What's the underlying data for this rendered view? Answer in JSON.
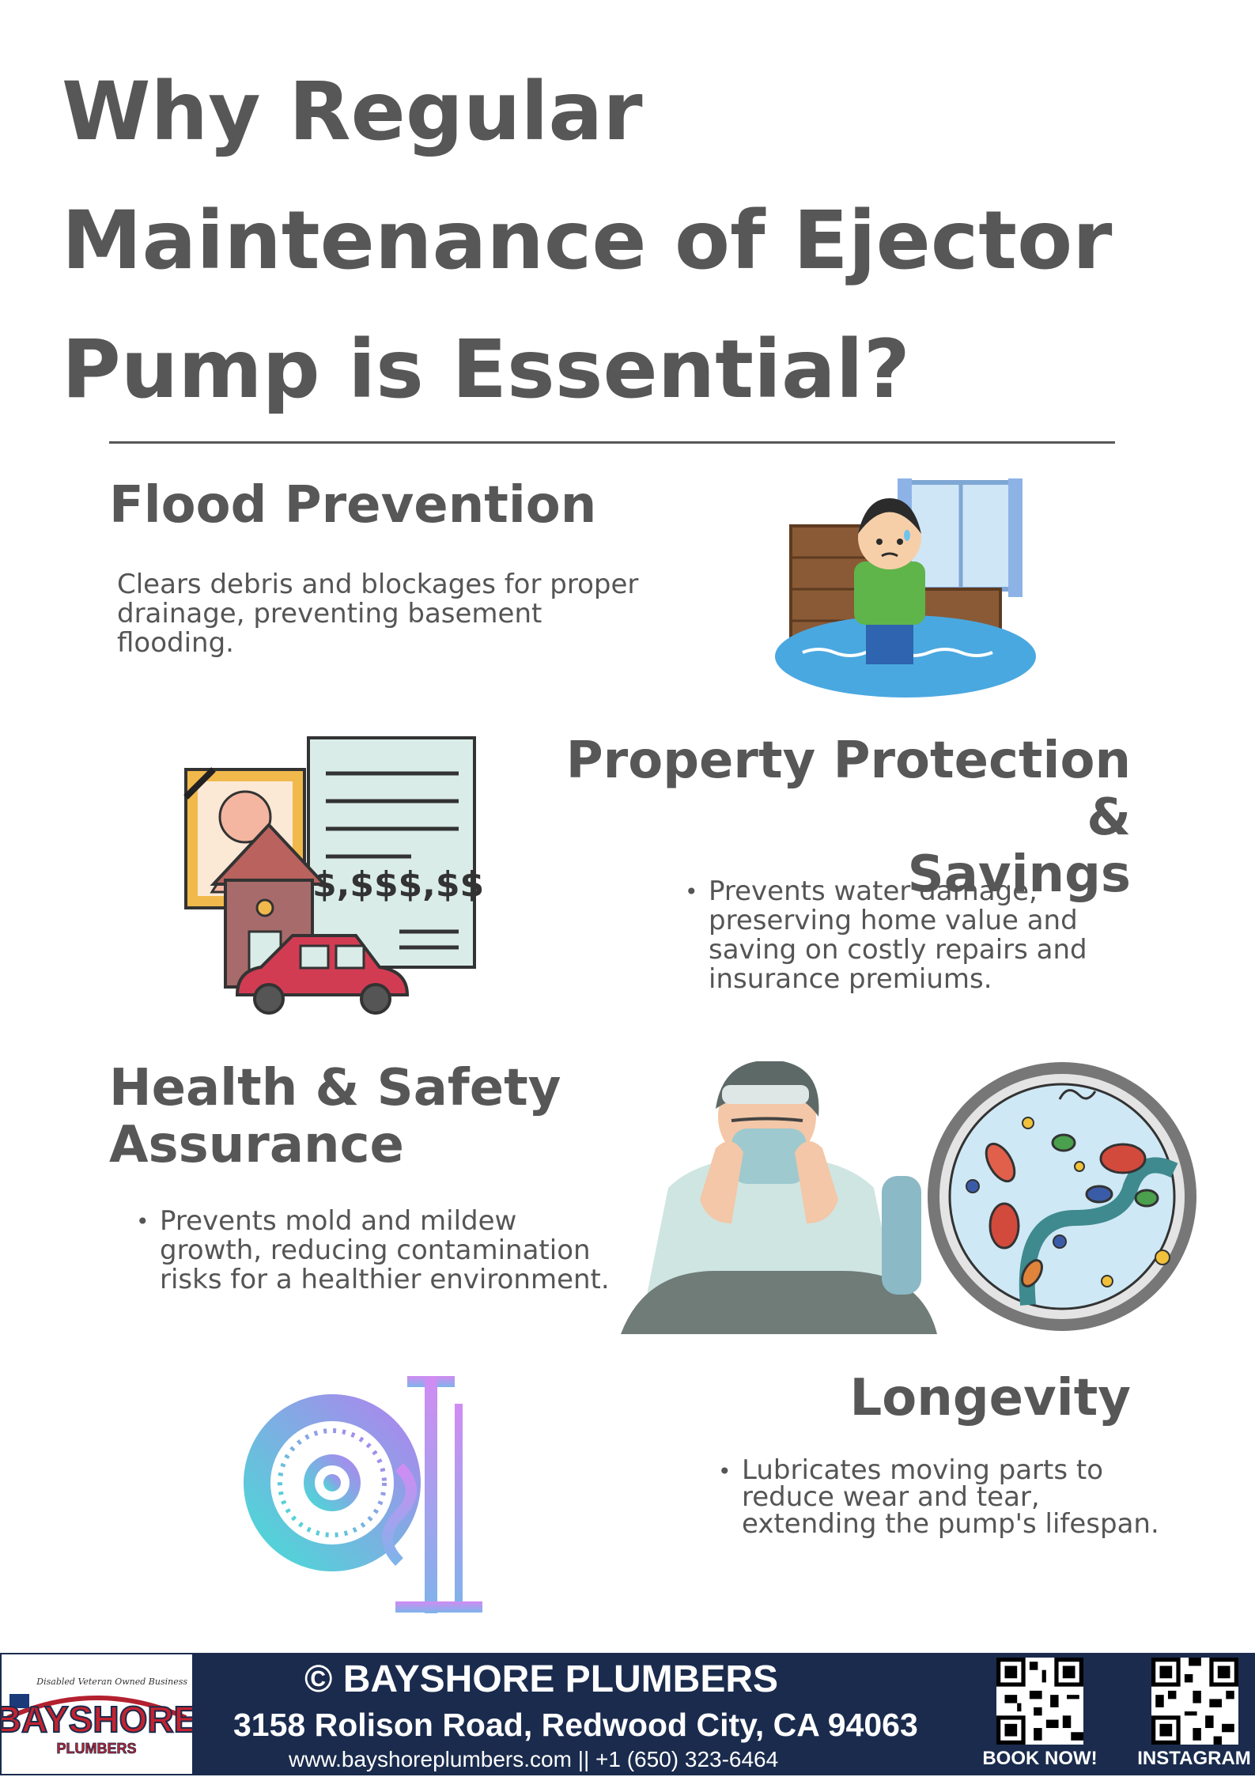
{
  "title": {
    "line1": "Why Regular",
    "line2": "Maintenance of Ejector",
    "line3": "Pump is Essential?"
  },
  "sections": {
    "flood": {
      "heading": "Flood Prevention",
      "body_lines": [
        "Clears debris and blockages for proper",
        "drainage, preventing basement",
        "flooding."
      ]
    },
    "property": {
      "heading_line1": "Property Protection &",
      "heading_line2": "Savings",
      "bullet": "•",
      "body_lines": [
        "Prevents water damage,",
        "preserving home value and",
        "saving on costly repairs and",
        "insurance premiums."
      ],
      "document_amount": "$,$$$,$$$"
    },
    "health": {
      "heading_line1": "Health & Safety",
      "heading_line2": "Assurance",
      "bullet": "•",
      "body_lines": [
        "Prevents mold and mildew",
        "growth, reducing contamination",
        "risks for a healthier environment."
      ]
    },
    "longevity": {
      "heading": "Longevity",
      "bullet": "•",
      "body_lines": [
        "Lubricates moving parts to",
        "reduce wear and tear,",
        "extending the pump's lifespan."
      ]
    }
  },
  "footer": {
    "logo_tagline": "Disabled Veteran Owned Business",
    "logo_word": "BAYSHORE",
    "logo_sub": "PLUMBERS",
    "brand": "© BAYSHORE PLUMBERS",
    "address": "3158 Rolison Road, Redwood City, CA 94063",
    "contact": "www.bayshoreplumbers.com || +1 (650) 323-6464",
    "qr1_label": "BOOK NOW!",
    "qr2_label": "INSTAGRAM"
  },
  "colors": {
    "heading": "#575757",
    "footer_bg": "#1a2b4d",
    "water": "#4aa8e0"
  },
  "icons": {
    "flood": "flooded-room-boy-icon",
    "property": "house-car-document-icon",
    "health": "sick-person-icon",
    "bacteria": "bacteria-petri-dish-icon",
    "longevity": "pump-gear-pipe-icon"
  }
}
